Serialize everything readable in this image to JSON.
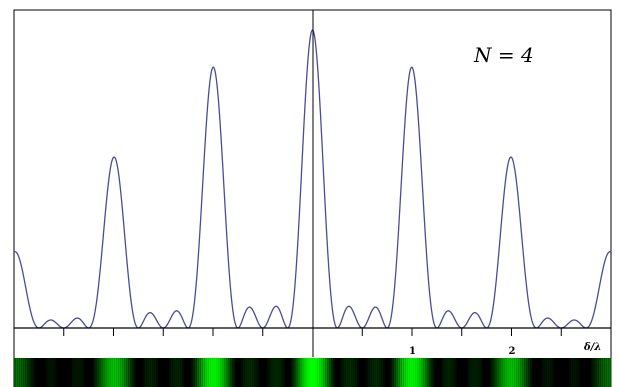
{
  "chart_data": {
    "type": "line",
    "annotation": "N = 4",
    "xlabel": "δ/λ",
    "x_tick_labels": [
      {
        "x": 1,
        "label": "1"
      },
      {
        "x": 2,
        "label": "2"
      }
    ],
    "x_ticks": [
      -3,
      -2.5,
      -2,
      -1.5,
      -1,
      -0.5,
      0,
      0.5,
      1,
      1.5,
      2,
      2.5
    ],
    "xlim": [
      -3,
      3
    ],
    "ylim": [
      0,
      1.05
    ],
    "series": [
      {
        "sampled_points": {
          "x": [
            -3,
            -2.75,
            -2.5,
            -2.25,
            -2,
            -1.75,
            -1.5,
            -1.25,
            -1,
            -0.75,
            -0.5,
            -0.25,
            0,
            0.25,
            0.5,
            0.75,
            1,
            1.25,
            1.5,
            1.75,
            2,
            2.25,
            2.5,
            2.75,
            3
          ],
          "y": [
            0.16,
            0.01,
            0,
            0.01,
            0.49,
            0.01,
            0,
            0.01,
            0.85,
            0.01,
            0,
            0.01,
            1.0,
            0.01,
            0,
            0.01,
            0.85,
            0.01,
            0,
            0.01,
            0.49,
            0.01,
            0,
            0.01,
            0.16
          ]
        }
      }
    ],
    "colors": {
      "curve": "#4b4b9a",
      "axis": "#000000",
      "fringe": "#00ff00",
      "fringe_background": "#000000"
    }
  }
}
